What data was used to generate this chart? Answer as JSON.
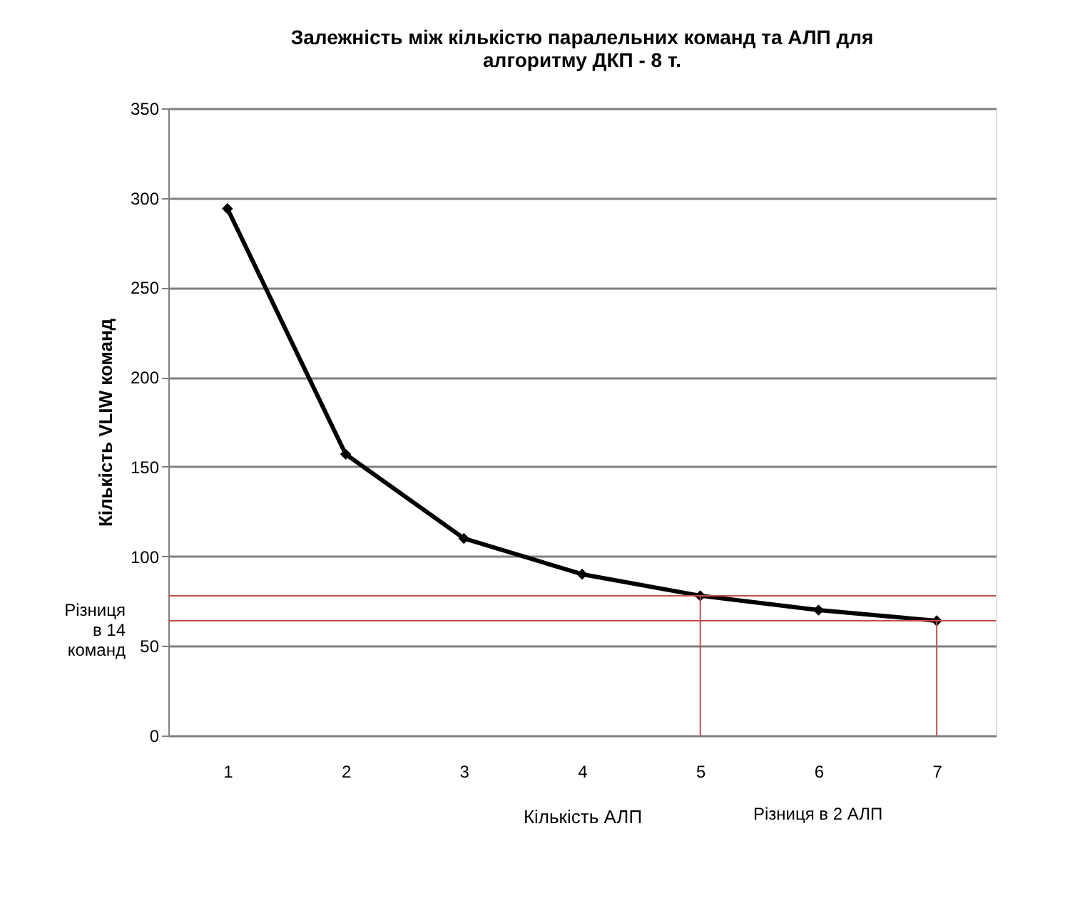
{
  "chart_data": {
    "type": "line",
    "title": [
      "Залежність між кількістю паралельних команд та АЛП для",
      "алгоритму ДКП - 8 т."
    ],
    "xlabel": "Кількість  АЛП",
    "ylabel": "Кількість  VLIW команд",
    "categories": [
      "1",
      "2",
      "3",
      "4",
      "5",
      "6",
      "7"
    ],
    "series": [
      {
        "color": "#000000",
        "values": [
          294,
          157,
          110,
          90,
          78,
          70,
          64
        ]
      }
    ],
    "ylim": [
      0,
      350
    ],
    "yticks": [
      0,
      50,
      100,
      150,
      200,
      250,
      300,
      350
    ],
    "grid": "y",
    "marker": "diamond",
    "line_style": "solid",
    "ref_lines": [
      {
        "axis": "y",
        "value": 78,
        "color": "#c0504d"
      },
      {
        "axis": "y",
        "value": 64,
        "color": "#c0504d"
      },
      {
        "axis": "x",
        "value": "5",
        "color": "#c0504d"
      },
      {
        "axis": "x",
        "value": "7",
        "color": "#c0504d"
      }
    ],
    "annotations": [
      "Різниця\nв 14\nкоманд",
      "Різниця в 2 АЛП"
    ]
  }
}
